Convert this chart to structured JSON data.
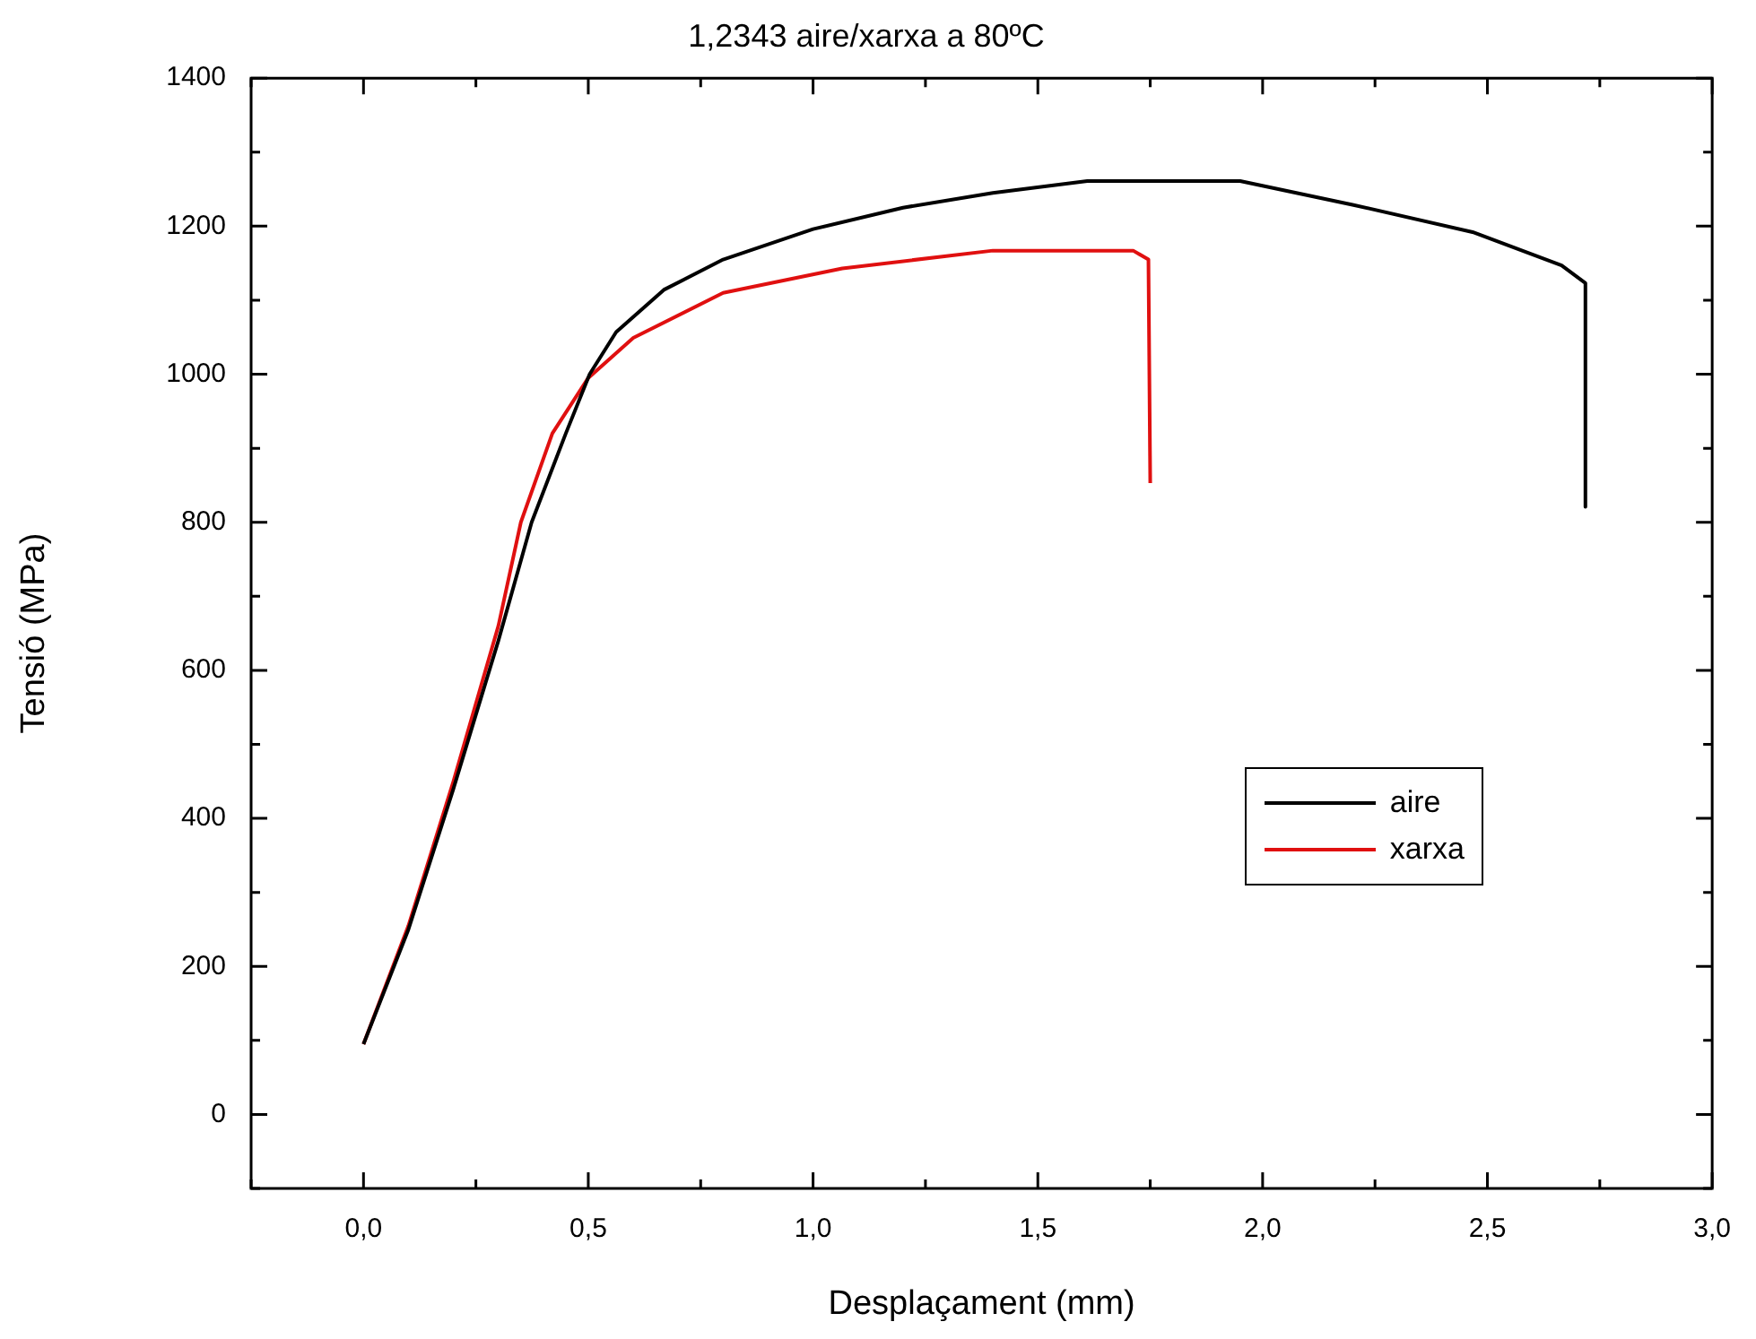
{
  "chart_data": {
    "type": "line",
    "title": "1,2343 aire/xarxa a 80ºC",
    "xlabel": "Desplaçament (mm)",
    "ylabel": "Tensió (MPa)",
    "xlim": [
      -0.25,
      3.0
    ],
    "xticks": [
      {
        "value": -0.25,
        "label": null
      },
      {
        "value": 0,
        "label": "0,0"
      },
      {
        "value": 0.25,
        "label": null
      },
      {
        "value": 0.5,
        "label": "0,5"
      },
      {
        "value": 0.75,
        "label": null
      },
      {
        "value": 1,
        "label": "1,0"
      },
      {
        "value": 1.25,
        "label": null
      },
      {
        "value": 1.5,
        "label": "1,5"
      },
      {
        "value": 1.75,
        "label": null
      },
      {
        "value": 2,
        "label": "2,0"
      },
      {
        "value": 2.25,
        "label": null
      },
      {
        "value": 2.5,
        "label": "2,5"
      },
      {
        "value": 2.75,
        "label": null
      },
      {
        "value": 3,
        "label": "3,0"
      }
    ],
    "ylim": [
      -100,
      1400
    ],
    "yticks": [
      {
        "value": -100,
        "label": null
      },
      0,
      {
        "value": 100,
        "label": null
      },
      200,
      {
        "value": 300,
        "label": null
      },
      400,
      {
        "value": 500,
        "label": null
      },
      600,
      {
        "value": 700,
        "label": null
      },
      800,
      {
        "value": 900,
        "label": null
      },
      1000,
      {
        "value": 1100,
        "label": null
      },
      1200,
      {
        "value": 1300,
        "label": null
      },
      1400
    ],
    "grid": false,
    "legend": "right",
    "marker": "none",
    "line_style": "solid",
    "series": [
      {
        "name": "aire",
        "color": "#000000",
        "x": [
          0,
          0.1,
          0.2,
          0.3,
          0.374,
          0.45,
          0.503,
          0.562,
          0.668,
          0.8,
          1.0,
          1.2,
          1.4,
          1.61,
          1.95,
          2.2,
          2.467,
          2.665,
          2.718,
          2.718
        ],
        "values": [
          95,
          250,
          440,
          640,
          800,
          920,
          1000,
          1057,
          1114,
          1155,
          1196,
          1225,
          1245,
          1261,
          1261,
          1229,
          1192,
          1147,
          1123,
          821
        ]
      },
      {
        "name": "xarxa",
        "color": "#e01010",
        "x": [
          0,
          0.1,
          0.2,
          0.3,
          0.35,
          0.42,
          0.5,
          0.6,
          0.8,
          1.065,
          1.4,
          1.712,
          1.746,
          1.75
        ],
        "values": [
          95,
          255,
          450,
          660,
          800,
          920,
          995,
          1049,
          1110,
          1143,
          1167,
          1167,
          1155,
          853
        ]
      }
    ]
  }
}
